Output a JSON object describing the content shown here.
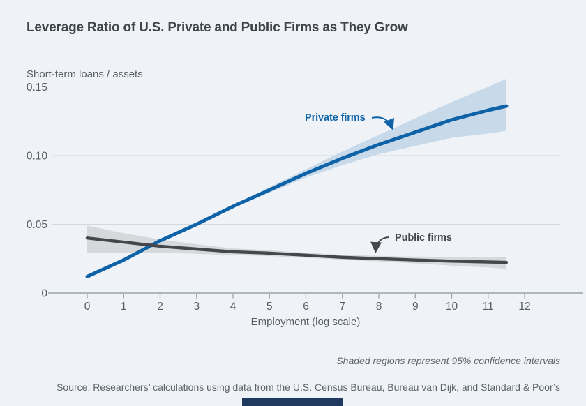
{
  "colors": {
    "background": "#eff3f8",
    "title": "#3f444a",
    "axis_text": "#575d64",
    "gridline": "#d3d9de",
    "axis_line": "#9aa1a8",
    "caption": "#5d636a",
    "footer_bar": "#1e3a5f"
  },
  "chart_data": {
    "type": "line",
    "title": "Leverage Ratio of U.S. Private and Public Firms as They Grow",
    "y_axis_label": "Short-term loans / assets",
    "x_axis_label": "Employment (log scale)",
    "note": "Shaded regions represent 95% confidence intervals",
    "source": "Source: Researchers’ calculations using data from the U.S. Census Bureau, Bureau van Dijk, and Standard & Poor’s",
    "xlim": [
      0,
      12.6
    ],
    "ylim": [
      0,
      0.158
    ],
    "grid": "horizontal",
    "legend_position": "inline-annotations",
    "x_ticks": [
      0,
      1,
      2,
      3,
      4,
      5,
      6,
      7,
      8,
      9,
      10,
      11,
      12
    ],
    "y_ticks": [
      {
        "label": "0.15",
        "v": 0.15
      },
      {
        "label": "0.10",
        "v": 0.1
      },
      {
        "label": "0.05",
        "v": 0.05
      },
      {
        "label": "0",
        "v": 0
      }
    ],
    "x": [
      0,
      1,
      2,
      3,
      4,
      5,
      6,
      7,
      8,
      9,
      10,
      11,
      11.5
    ],
    "series": [
      {
        "name": "Private firms",
        "color": "#0e62a7",
        "band_color": "#c8d9e9",
        "values": [
          0.012,
          0.024,
          0.038,
          0.05,
          0.063,
          0.075,
          0.087,
          0.098,
          0.108,
          0.117,
          0.126,
          0.133,
          0.136
        ],
        "ci_upper": [
          0.013,
          0.025,
          0.039,
          0.051,
          0.064,
          0.077,
          0.09,
          0.103,
          0.115,
          0.127,
          0.139,
          0.15,
          0.156
        ],
        "ci_lower": [
          0.011,
          0.023,
          0.037,
          0.049,
          0.062,
          0.073,
          0.084,
          0.093,
          0.101,
          0.107,
          0.113,
          0.116,
          0.118
        ]
      },
      {
        "name": "Public firms",
        "color": "#45474a",
        "band_color": "#d6d9dc",
        "values": [
          0.04,
          0.037,
          0.034,
          0.032,
          0.03,
          0.029,
          0.0275,
          0.026,
          0.025,
          0.024,
          0.0232,
          0.0226,
          0.0223
        ],
        "ci_upper": [
          0.049,
          0.0435,
          0.039,
          0.0355,
          0.0325,
          0.031,
          0.0293,
          0.0278,
          0.027,
          0.0265,
          0.0262,
          0.0262,
          0.0259
        ],
        "ci_lower": [
          0.0295,
          0.0295,
          0.0293,
          0.0285,
          0.0275,
          0.0269,
          0.0257,
          0.0242,
          0.023,
          0.0215,
          0.0199,
          0.0186,
          0.0177
        ]
      }
    ]
  }
}
